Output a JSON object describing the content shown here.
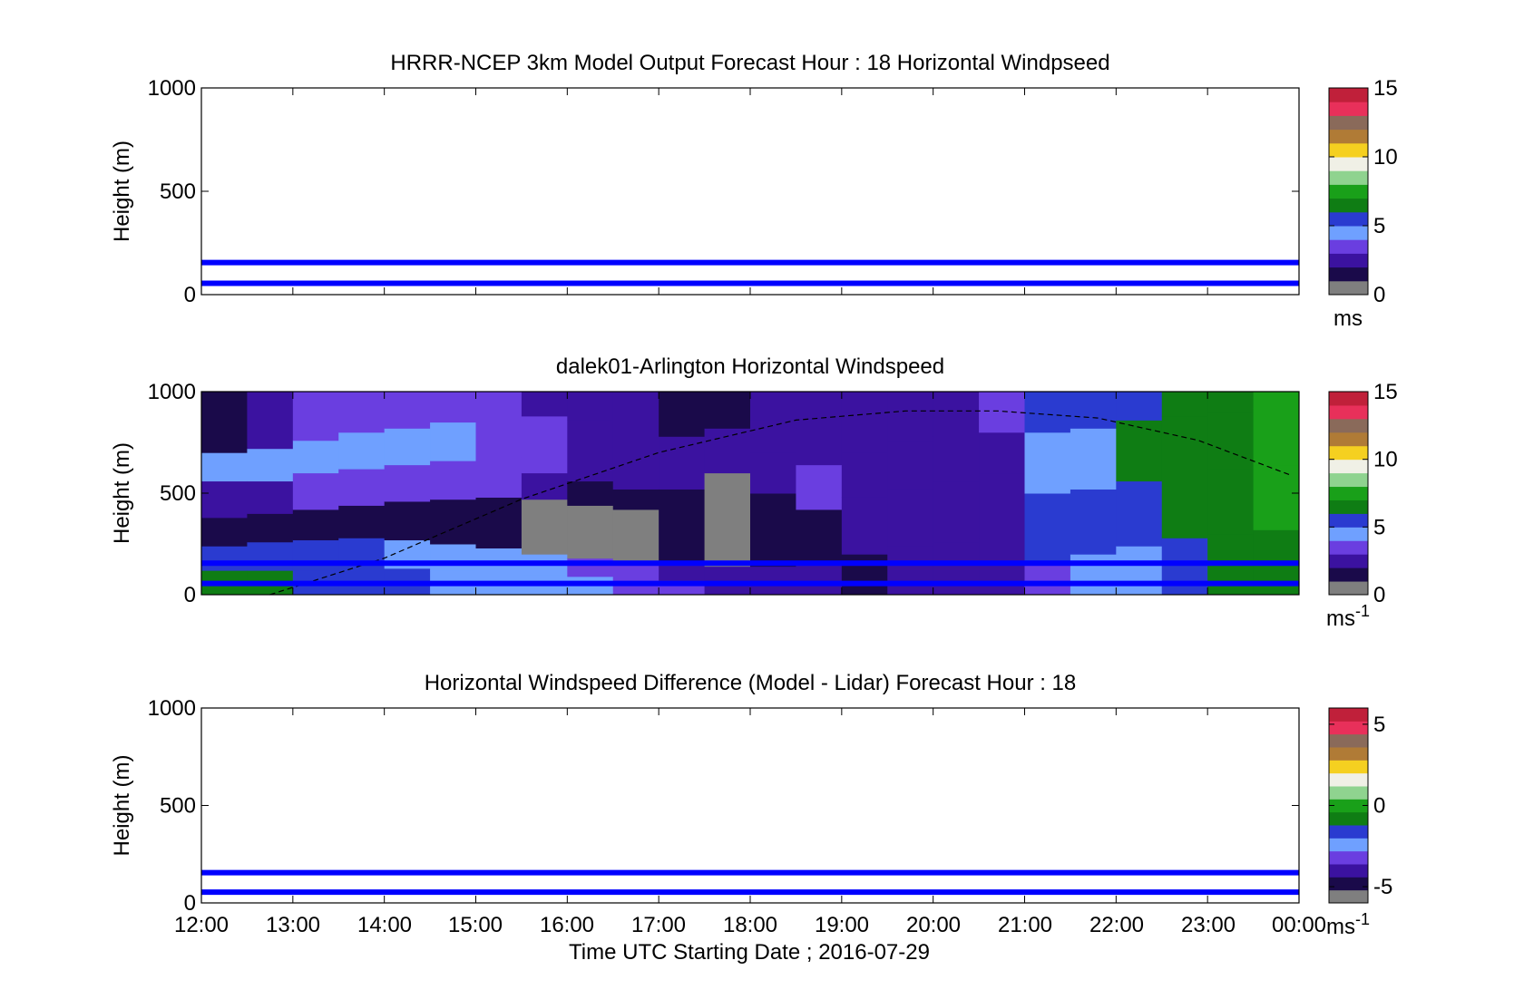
{
  "xaxis": {
    "ticks": [
      "12:00",
      "13:00",
      "14:00",
      "15:00",
      "16:00",
      "17:00",
      "18:00",
      "19:00",
      "20:00",
      "21:00",
      "22:00",
      "23:00",
      "00:00"
    ],
    "label": "Time UTC  Starting Date ; 2016-07-29"
  },
  "chart_data": [
    {
      "type": "heatmap",
      "title": "HRRR-NCEP 3km Model Output   Forecast Hour : 18 Horizontal Windpseed",
      "ylabel": "Height (m)",
      "yticks": [
        "0",
        "500",
        "1000"
      ],
      "ylim": [
        0,
        1000
      ],
      "xlim": [
        "12:00",
        "00:00"
      ],
      "reference_lines_m": [
        55,
        155
      ],
      "colorbar": {
        "ticks": [
          "0",
          "5",
          "10",
          "15"
        ],
        "range": [
          0,
          15
        ],
        "unit": "ms"
      },
      "has_data": false
    },
    {
      "type": "heatmap",
      "title": "dalek01-Arlington  Horizontal Windspeed",
      "ylabel": "Height (m)",
      "yticks": [
        "0",
        "500",
        "1000"
      ],
      "ylim": [
        0,
        1000
      ],
      "xlim": [
        "12:00",
        "00:00"
      ],
      "reference_lines_m": [
        55,
        155
      ],
      "colorbar": {
        "ticks": [
          "0",
          "5",
          "10",
          "15"
        ],
        "range": [
          0,
          15
        ],
        "unit": "ms",
        "unit_sup": "-1"
      },
      "has_data": true,
      "mixing_height_curve": {
        "x_hours": [
          12.75,
          14.0,
          15.5,
          17.0,
          18.5,
          19.7,
          20.7,
          21.8,
          22.9,
          23.9
        ],
        "height_m": [
          0,
          180,
          470,
          700,
          860,
          905,
          905,
          870,
          760,
          590
        ]
      },
      "windspeed_columns": [
        {
          "t": 12.0,
          "bands": [
            [
              0,
              120,
              6.5
            ],
            [
              120,
              240,
              5.0
            ],
            [
              240,
              380,
              1.2
            ],
            [
              380,
              560,
              2.5
            ],
            [
              560,
              700,
              4.2
            ],
            [
              700,
              1000,
              1.0
            ]
          ]
        },
        {
          "t": 12.5,
          "bands": [
            [
              0,
              120,
              6.0
            ],
            [
              120,
              260,
              5.5
            ],
            [
              260,
              400,
              1.0
            ],
            [
              400,
              560,
              2.8
            ],
            [
              560,
              720,
              4.5
            ],
            [
              720,
              1000,
              2.2
            ]
          ]
        },
        {
          "t": 13.0,
          "bands": [
            [
              0,
              120,
              5.8
            ],
            [
              120,
              270,
              5.2
            ],
            [
              270,
              420,
              1.5
            ],
            [
              420,
              600,
              3.0
            ],
            [
              600,
              760,
              4.8
            ],
            [
              760,
              1000,
              3.2
            ]
          ]
        },
        {
          "t": 13.5,
          "bands": [
            [
              0,
              130,
              5.5
            ],
            [
              130,
              280,
              5.0
            ],
            [
              280,
              440,
              1.8
            ],
            [
              440,
              620,
              3.2
            ],
            [
              620,
              800,
              4.5
            ],
            [
              800,
              1000,
              3.0
            ]
          ]
        },
        {
          "t": 14.0,
          "bands": [
            [
              0,
              130,
              5.0
            ],
            [
              130,
              270,
              4.6
            ],
            [
              270,
              460,
              1.6
            ],
            [
              460,
              640,
              3.4
            ],
            [
              640,
              820,
              4.8
            ],
            [
              820,
              1000,
              3.5
            ]
          ]
        },
        {
          "t": 14.5,
          "bands": [
            [
              0,
              120,
              4.8
            ],
            [
              120,
              250,
              4.5
            ],
            [
              250,
              470,
              1.4
            ],
            [
              470,
              660,
              3.6
            ],
            [
              660,
              850,
              4.2
            ],
            [
              850,
              1000,
              3.8
            ]
          ]
        },
        {
          "t": 15.0,
          "bands": [
            [
              0,
              110,
              4.6
            ],
            [
              110,
              230,
              4.2
            ],
            [
              230,
              480,
              1.0
            ],
            [
              480,
              680,
              3.0
            ],
            [
              680,
              870,
              3.8
            ],
            [
              870,
              1000,
              3.2
            ]
          ]
        },
        {
          "t": 15.5,
          "bands": [
            [
              0,
              100,
              4.4
            ],
            [
              100,
              200,
              4.0
            ],
            [
              200,
              470,
              0.8
            ],
            [
              470,
              600,
              2.2
            ],
            [
              600,
              880,
              3.2
            ],
            [
              880,
              1000,
              2.6
            ]
          ]
        },
        {
          "t": 16.0,
          "bands": [
            [
              0,
              90,
              4.0
            ],
            [
              90,
              180,
              3.5
            ],
            [
              180,
              440,
              0.6
            ],
            [
              440,
              560,
              1.8
            ],
            [
              560,
              860,
              2.8
            ],
            [
              860,
              1000,
              2.2
            ]
          ]
        },
        {
          "t": 16.5,
          "bands": [
            [
              0,
              80,
              3.6
            ],
            [
              80,
              160,
              3.0
            ],
            [
              160,
              420,
              0.7
            ],
            [
              420,
              520,
              1.6
            ],
            [
              520,
              820,
              2.4
            ],
            [
              820,
              1000,
              2.0
            ]
          ]
        },
        {
          "t": 17.0,
          "bands": [
            [
              0,
              70,
              3.2
            ],
            [
              70,
              150,
              2.6
            ],
            [
              150,
              520,
              1.0
            ],
            [
              520,
              780,
              2.2
            ],
            [
              780,
              1000,
              1.8
            ]
          ]
        },
        {
          "t": 17.5,
          "bands": [
            [
              0,
              60,
              2.8
            ],
            [
              60,
              140,
              2.0
            ],
            [
              140,
              600,
              0.9
            ],
            [
              600,
              820,
              2.0
            ],
            [
              820,
              1000,
              1.6
            ]
          ]
        },
        {
          "t": 18.0,
          "bands": [
            [
              0,
              140,
              2.2
            ],
            [
              140,
              500,
              1.2
            ],
            [
              500,
              700,
              2.8
            ],
            [
              700,
              860,
              2.4
            ],
            [
              860,
              1000,
              2.0
            ]
          ]
        },
        {
          "t": 18.5,
          "bands": [
            [
              0,
              160,
              2.0
            ],
            [
              160,
              420,
              1.6
            ],
            [
              420,
              640,
              3.0
            ],
            [
              640,
              820,
              2.4
            ],
            [
              820,
              1000,
              2.2
            ]
          ]
        },
        {
          "t": 19.0,
          "bands": [
            [
              0,
              200,
              1.8
            ],
            [
              200,
              480,
              2.2
            ],
            [
              480,
              700,
              2.0
            ],
            [
              700,
              900,
              2.6
            ],
            [
              900,
              1000,
              2.2
            ]
          ]
        },
        {
          "t": 19.5,
          "bands": [
            [
              0,
              240,
              2.0
            ],
            [
              240,
              520,
              2.4
            ],
            [
              520,
              760,
              2.2
            ],
            [
              760,
              1000,
              2.8
            ]
          ]
        },
        {
          "t": 20.0,
          "bands": [
            [
              0,
              260,
              2.2
            ],
            [
              260,
              560,
              2.6
            ],
            [
              560,
              780,
              2.0
            ],
            [
              780,
              1000,
              2.6
            ]
          ]
        },
        {
          "t": 20.5,
          "bands": [
            [
              0,
              280,
              2.4
            ],
            [
              280,
              600,
              2.2
            ],
            [
              600,
              800,
              2.0
            ],
            [
              800,
              1000,
              3.0
            ]
          ]
        },
        {
          "t": 21.0,
          "bands": [
            [
              0,
              160,
              3.5
            ],
            [
              160,
              500,
              5.0
            ],
            [
              500,
              800,
              4.5
            ],
            [
              800,
              1000,
              5.2
            ]
          ]
        },
        {
          "t": 21.5,
          "bands": [
            [
              0,
              200,
              4.2
            ],
            [
              200,
              520,
              5.4
            ],
            [
              520,
              820,
              4.8
            ],
            [
              820,
              1000,
              5.6
            ]
          ]
        },
        {
          "t": 22.0,
          "bands": [
            [
              0,
              240,
              4.8
            ],
            [
              240,
              560,
              5.6
            ],
            [
              560,
              860,
              6.0
            ],
            [
              860,
              1000,
              5.4
            ]
          ]
        },
        {
          "t": 22.5,
          "bands": [
            [
              0,
              280,
              5.4
            ],
            [
              280,
              600,
              6.2
            ],
            [
              600,
              880,
              6.4
            ],
            [
              880,
              1000,
              6.0
            ]
          ]
        },
        {
          "t": 23.0,
          "bands": [
            [
              0,
              300,
              6.0
            ],
            [
              300,
              620,
              6.6
            ],
            [
              620,
              900,
              6.8
            ],
            [
              900,
              1000,
              6.4
            ]
          ]
        },
        {
          "t": 23.5,
          "bands": [
            [
              0,
              320,
              6.6
            ],
            [
              320,
              640,
              7.0
            ],
            [
              640,
              920,
              7.2
            ],
            [
              920,
              1000,
              7.6
            ]
          ]
        }
      ]
    },
    {
      "type": "heatmap",
      "title": "Horizontal Windspeed Difference (Model - Lidar) Forecast Hour : 18",
      "ylabel": "Height (m)",
      "yticks": [
        "0",
        "500",
        "1000"
      ],
      "ylim": [
        0,
        1000
      ],
      "xlim": [
        "12:00",
        "00:00"
      ],
      "reference_lines_m": [
        55,
        155
      ],
      "colorbar": {
        "ticks": [
          "-5",
          "0",
          "5"
        ],
        "range": [
          -6,
          6
        ],
        "unit": "ms",
        "unit_sup": "-1"
      },
      "has_data": false
    }
  ],
  "colors": {
    "ref_line": "#0000ff",
    "colormap": [
      "#7f7f7f",
      "#1a0a4a",
      "#3b12a0",
      "#6a3ee0",
      "#6fa0ff",
      "#2a3bd0",
      "#0f7d14",
      "#19a019",
      "#8fd38f",
      "#f0f0e6",
      "#f5d020",
      "#b07b36",
      "#8a6a5a",
      "#e8305a",
      "#c0203a"
    ]
  }
}
